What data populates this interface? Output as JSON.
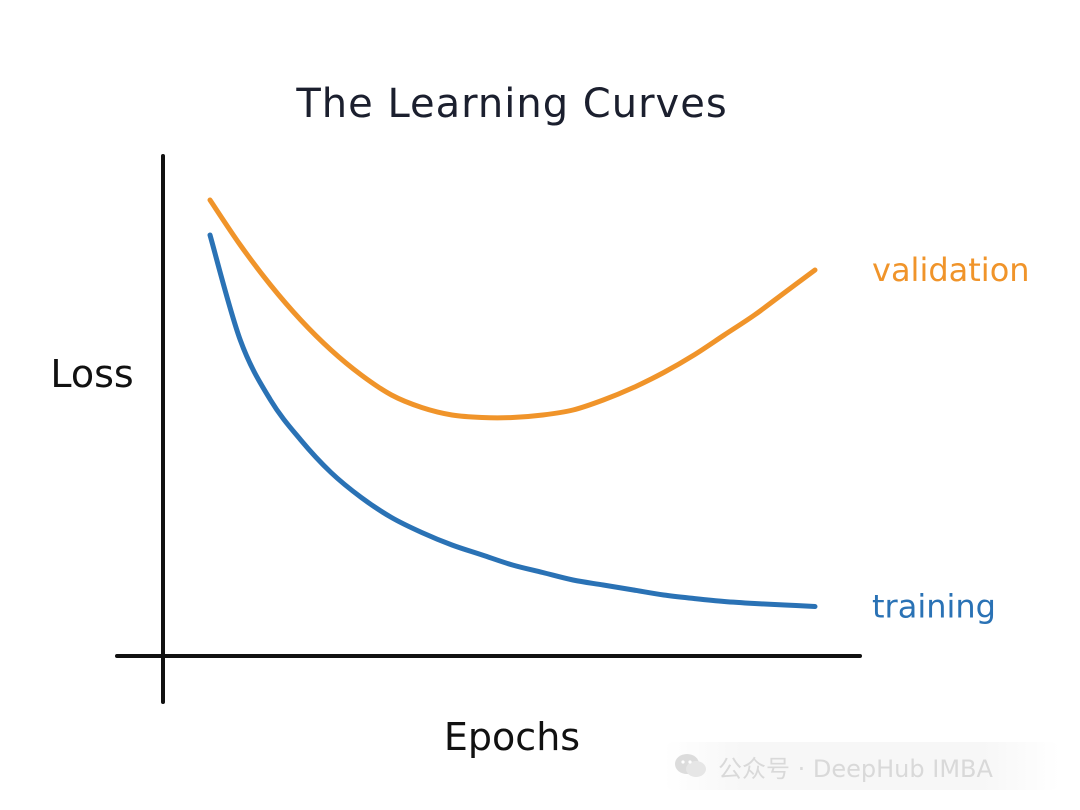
{
  "chart_data": {
    "type": "line",
    "title": "The Learning Curves",
    "xlabel": "Epochs",
    "ylabel": "Loss",
    "grid": false,
    "legend": "inline labels at right end of each curve",
    "xlim": [
      0,
      1
    ],
    "ylim": [
      0,
      1
    ],
    "series": [
      {
        "name": "validation",
        "color": "#f0942a",
        "x": [
          0.0,
          0.05,
          0.1,
          0.15,
          0.2,
          0.25,
          0.3,
          0.35,
          0.4,
          0.45,
          0.5,
          0.55,
          0.6,
          0.65,
          0.7,
          0.75,
          0.8,
          0.85,
          0.9,
          0.95,
          1.0
        ],
        "values": [
          0.9,
          0.81,
          0.73,
          0.66,
          0.6,
          0.55,
          0.51,
          0.485,
          0.47,
          0.465,
          0.465,
          0.47,
          0.48,
          0.5,
          0.525,
          0.555,
          0.59,
          0.63,
          0.67,
          0.715,
          0.76
        ]
      },
      {
        "name": "training",
        "color": "#2a72b5",
        "x": [
          0.0,
          0.05,
          0.1,
          0.15,
          0.2,
          0.25,
          0.3,
          0.35,
          0.4,
          0.45,
          0.5,
          0.55,
          0.6,
          0.65,
          0.7,
          0.75,
          0.8,
          0.85,
          0.9,
          0.95,
          1.0
        ],
        "values": [
          0.83,
          0.62,
          0.5,
          0.42,
          0.355,
          0.305,
          0.265,
          0.235,
          0.21,
          0.19,
          0.17,
          0.155,
          0.14,
          0.13,
          0.12,
          0.11,
          0.103,
          0.097,
          0.093,
          0.09,
          0.087
        ]
      }
    ]
  },
  "watermark": {
    "text": "公众号 · DeepHub IMBA"
  },
  "colors": {
    "axis": "#111111",
    "title": "#1b1f2e"
  }
}
